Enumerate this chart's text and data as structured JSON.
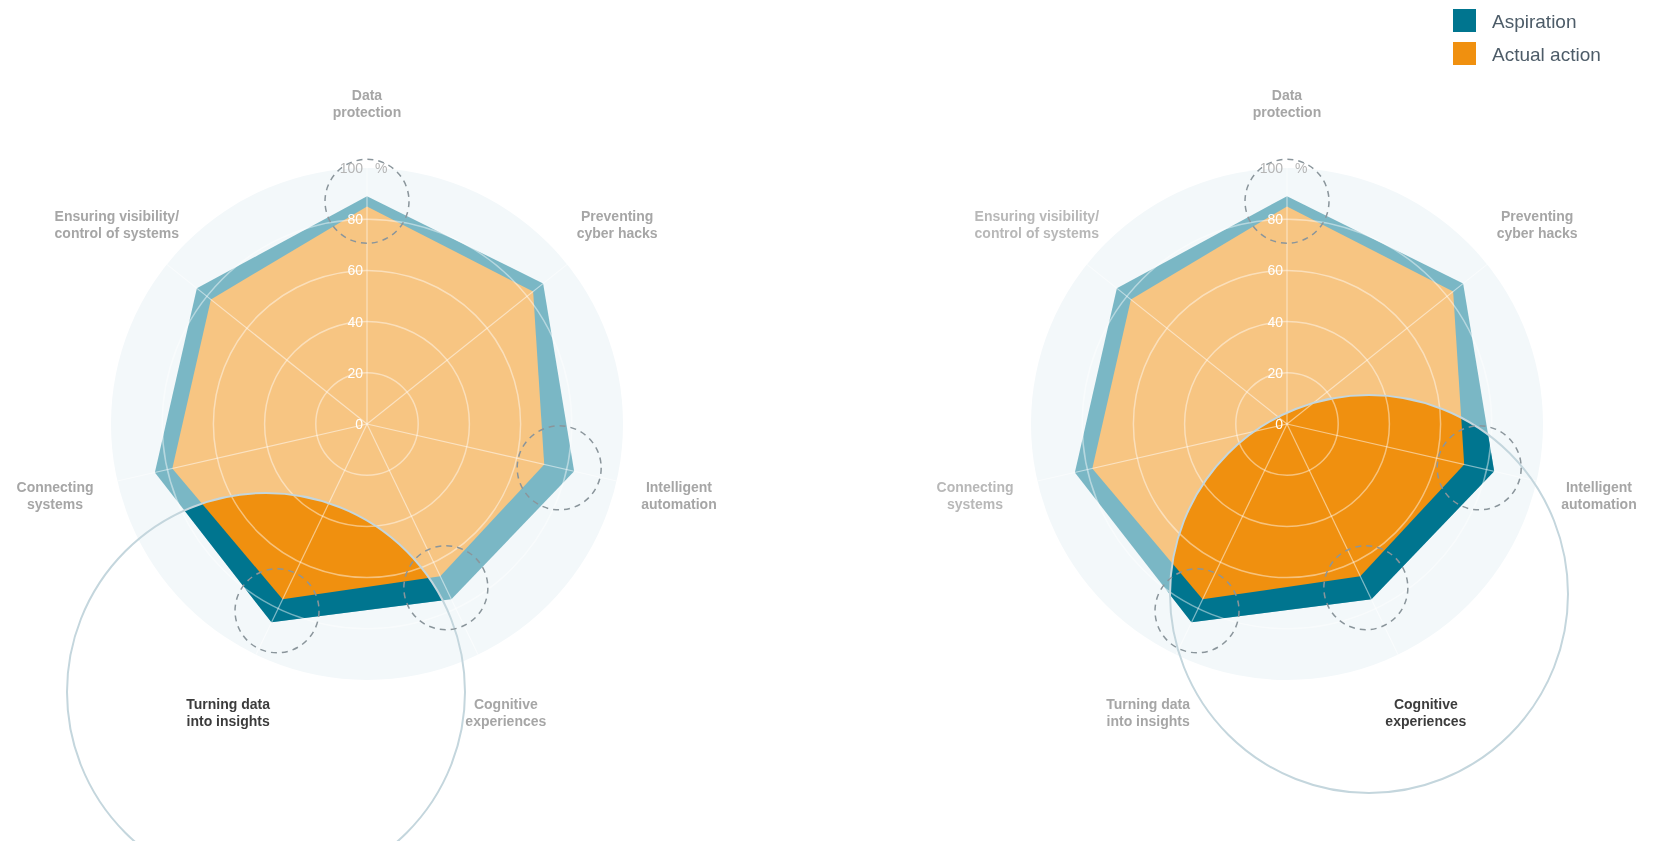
{
  "chart_data": [
    {
      "type": "radar",
      "categories": [
        "Data protection",
        "Preventing cyber hacks",
        "Intelligent automation",
        "Cognitive experiences",
        "Turning data into insights",
        "Connecting systems",
        "Ensuring visibility/ control of systems"
      ],
      "ylim": [
        0,
        100
      ],
      "yticks": [
        0,
        20,
        40,
        60,
        80,
        100
      ],
      "ylabel": "%",
      "legend": false,
      "series": [
        {
          "color": "#00758f",
          "values": [
            89,
            88,
            83,
            76,
            86,
            85,
            85
          ]
        },
        {
          "color": "#f0900f",
          "values": [
            85,
            83,
            71,
            66,
            76,
            78,
            78
          ]
        }
      ]
    },
    {
      "type": "radar",
      "categories": [
        "Data protection",
        "Preventing cyber hacks",
        "Intelligent automation",
        "Cognitive experiences",
        "Turning data into insights",
        "Connecting systems",
        "Ensuring visibility/ control of systems"
      ],
      "ylim": [
        0,
        100
      ],
      "yticks": [
        0,
        20,
        40,
        60,
        80,
        100
      ],
      "ylabel": "%",
      "legend": "top right",
      "series": [
        {
          "name": "Aspiration",
          "color": "#00758f",
          "values": [
            89,
            88,
            83,
            76,
            86,
            85,
            85
          ]
        },
        {
          "name": "Actual action",
          "color": "#f0900f",
          "values": [
            85,
            83,
            71,
            66,
            76,
            78,
            78
          ]
        }
      ]
    }
  ]
}
